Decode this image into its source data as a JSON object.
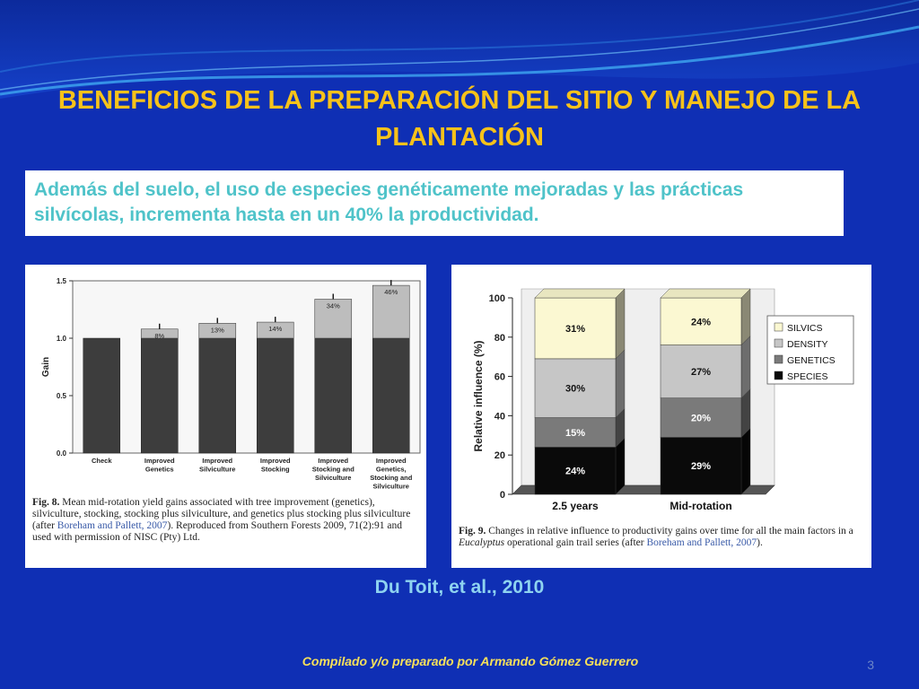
{
  "slide": {
    "title": "BENEFICIOS DE LA PREPARACIÓN DEL SITIO Y MANEJO DE LA PLANTACIÓN",
    "callout": "Además del suelo, el uso de especies genéticamente mejoradas y las prácticas silvícolas, incrementa hasta en un 40% la productividad.",
    "citation": "Du Toit, et al., 2010",
    "footer": "Compilado y/o preparado por Armando Gómez Guerrero",
    "page_number": "3",
    "colors": {
      "background": "#0f2fb4",
      "title": "#f7c21a",
      "callout_text": "#4fc3c9",
      "citation": "#8ed3f0",
      "footer": "#f7e05a"
    }
  },
  "fig8": {
    "caption_label": "Fig. 8.",
    "caption_text_1": " Mean mid-rotation yield gains associated with tree improvement (genetics), silviculture, stocking, stocking plus silviculture, and genetics plus stocking plus silviculture (after ",
    "caption_ref": "Boreham and Pallett, 2007",
    "caption_text_2": "). Reproduced from Southern Forests 2009, 71(2):91 and used with permission of NISC (Pty) Ltd."
  },
  "fig9": {
    "caption_label": "Fig. 9.",
    "caption_text_1": " Changes in relative influence to productivity gains over time for all the main factors in a ",
    "caption_italic": "Eucalyptus",
    "caption_text_2": " operational gain trail series (after ",
    "caption_ref": "Boreham and Pallett, 2007",
    "caption_text_3": ")."
  },
  "chart_data": [
    {
      "type": "bar",
      "title": "",
      "xlabel": "",
      "ylabel": "Gain",
      "ylim": [
        0.0,
        1.5
      ],
      "yticks": [
        "0.0",
        "0.5",
        "1.0",
        "1.5"
      ],
      "grid": false,
      "categories": [
        "Check",
        "Improved Genetics",
        "Improved Silviculture",
        "Improved Stocking",
        "Improved Stocking and Silviculture",
        "Improved Genetics, Stocking and Silviculture"
      ],
      "category_lines": [
        [
          "Check"
        ],
        [
          "Improved",
          "Genetics"
        ],
        [
          "Improved",
          "Silviculture"
        ],
        [
          "Improved",
          "Stocking"
        ],
        [
          "Improved",
          "Stocking and",
          "Silviculture"
        ],
        [
          "Improved",
          "Genetics,",
          "Stocking and",
          "Silviculture"
        ]
      ],
      "base": [
        1.0,
        1.0,
        1.0,
        1.0,
        1.0,
        1.0
      ],
      "gain": [
        0,
        0.08,
        0.13,
        0.14,
        0.34,
        0.46
      ],
      "gain_labels": [
        "",
        "8%",
        "13%",
        "14%",
        "34%",
        "46%"
      ],
      "colors": {
        "base": "#3d3d3d",
        "gain": "#bdbdbd"
      }
    },
    {
      "type": "bar",
      "stacked": true,
      "title": "",
      "xlabel": "",
      "ylabel": "Relative influence (%)",
      "ylim": [
        0,
        100
      ],
      "yticks": [
        "0",
        "20",
        "40",
        "60",
        "80",
        "100"
      ],
      "grid": false,
      "categories": [
        "2.5 years",
        "Mid-rotation"
      ],
      "legend_position": "right",
      "series": [
        {
          "name": "SPECIES",
          "values": [
            24,
            29
          ],
          "labels": [
            "24%",
            "29%"
          ],
          "color": "#0a0a0a",
          "label_color": "#ffffff"
        },
        {
          "name": "GENETICS",
          "values": [
            15,
            20
          ],
          "labels": [
            "15%",
            "20%"
          ],
          "color": "#7a7a7a",
          "label_color": "#ffffff"
        },
        {
          "name": "DENSITY",
          "values": [
            30,
            27
          ],
          "labels": [
            "30%",
            "27%"
          ],
          "color": "#c6c6c6",
          "label_color": "#111111"
        },
        {
          "name": "SILVICS",
          "values": [
            31,
            24
          ],
          "labels": [
            "31%",
            "24%"
          ],
          "color": "#fbf8d2",
          "label_color": "#111111"
        }
      ]
    }
  ]
}
